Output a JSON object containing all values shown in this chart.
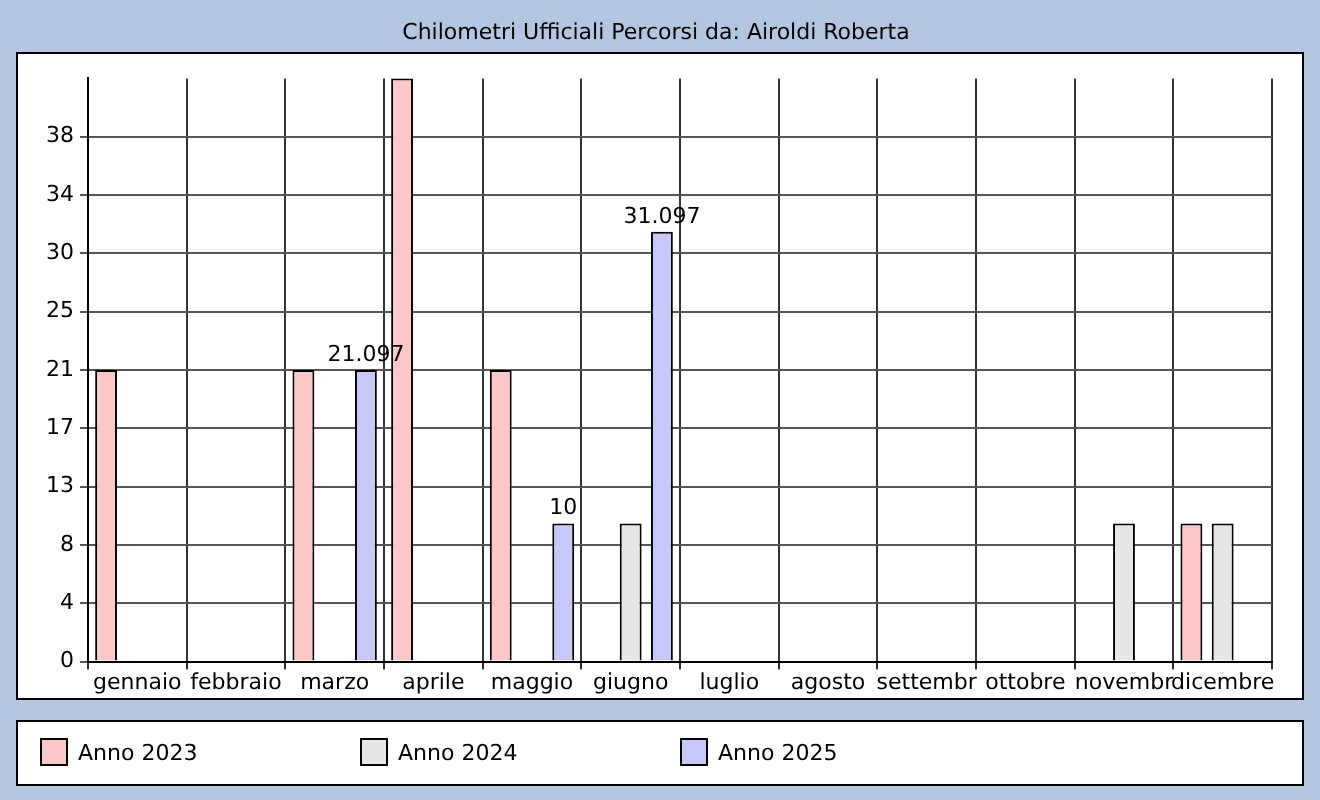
{
  "chart_data": {
    "type": "bar",
    "title": "Chilometri Ufficiali Percorsi da: Airoldi Roberta",
    "categories": [
      "gennaio",
      "febbraio",
      "marzo",
      "aprile",
      "maggio",
      "giugno",
      "luglio",
      "agosto",
      "settembr",
      "ottobre",
      "novembr",
      "dicembre"
    ],
    "series": [
      {
        "name": "Anno 2023",
        "color": "#ffc8c8",
        "values": [
          21.097,
          null,
          21.097,
          42.194,
          21.097,
          null,
          null,
          null,
          null,
          null,
          null,
          10
        ]
      },
      {
        "name": "Anno 2024",
        "color": "#e6e6e6",
        "values": [
          null,
          null,
          null,
          null,
          null,
          10,
          null,
          null,
          null,
          null,
          10,
          10
        ]
      },
      {
        "name": "Anno 2025",
        "color": "#c8c8f8",
        "values": [
          null,
          null,
          21.097,
          null,
          10,
          31.097,
          null,
          null,
          null,
          null,
          null,
          null
        ],
        "value_labels": [
          null,
          null,
          "21.097",
          null,
          "10",
          "31.097",
          null,
          null,
          null,
          null,
          null,
          null
        ]
      }
    ],
    "ylim": [
      0,
      42.194
    ],
    "yticks": [
      0,
      {
        "value": 4.2194,
        "label": "4"
      },
      {
        "value": 8.4388,
        "label": "8"
      },
      {
        "value": 12.6582,
        "label": "13"
      },
      {
        "value": 16.8776,
        "label": "17"
      },
      {
        "value": 21.097,
        "label": "21"
      },
      {
        "value": 25.3164,
        "label": "25"
      },
      {
        "value": 29.5358,
        "label": "30"
      },
      {
        "value": 33.7552,
        "label": "34"
      },
      {
        "value": 37.9746,
        "label": "38"
      }
    ],
    "grid": true,
    "legend": "bottom"
  }
}
